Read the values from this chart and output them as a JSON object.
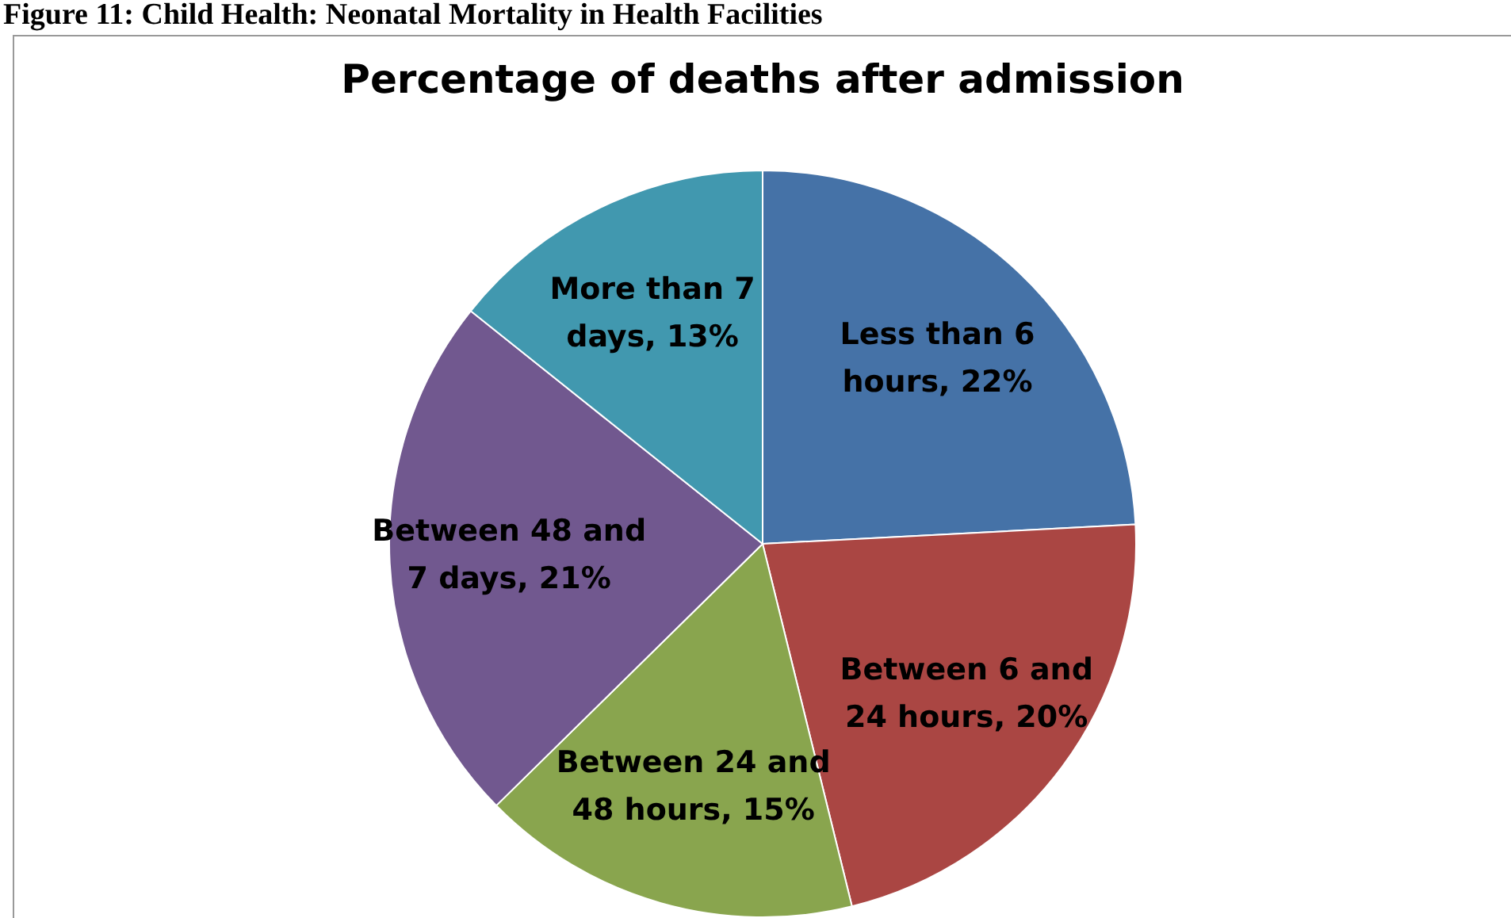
{
  "chart_data": {
    "type": "pie",
    "title": "Percentage of deaths after admission",
    "categories": [
      "Less than 6 hours",
      "Between 6 and 24 hours",
      "Between 24 and 48 hours",
      "Between 48 and 7 days",
      "More than 7 days"
    ],
    "values": [
      22,
      20,
      15,
      21,
      13
    ],
    "colors": [
      "#4572a7",
      "#aa4643",
      "#89a54e",
      "#71588f",
      "#4198af"
    ],
    "value_labels": [
      "22%",
      "20%",
      "15%",
      "21%",
      "13%"
    ],
    "annotations": [
      "Figure 11: Child Health: Neonatal Mortality in Health Facilities"
    ]
  }
}
